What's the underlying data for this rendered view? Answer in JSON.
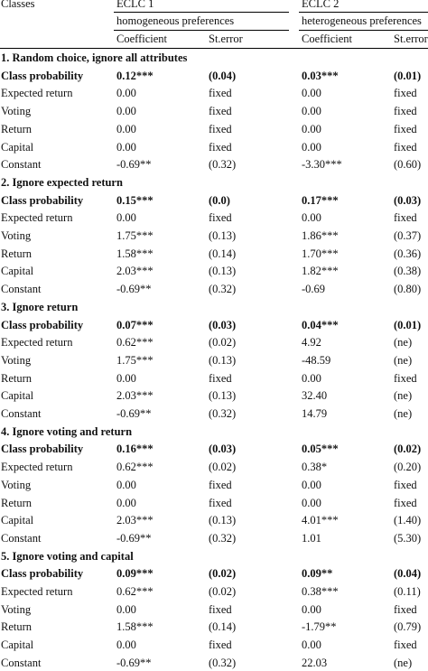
{
  "header": {
    "classes_label": "Classes",
    "eclc1": "ECLC 1",
    "eclc1_sub": "homogeneous preferences",
    "eclc2": "ECLC 2",
    "eclc2_sub": "heterogeneous preferences",
    "coef1": "Coefficient",
    "se1": "St.error",
    "coef2": "Coefficient",
    "se2": "St.error"
  },
  "sections": [
    {
      "title": "1. Random choice, ignore all attributes",
      "rows": [
        {
          "label": "Class probability",
          "c1": "0.12***",
          "s1": "(0.04)",
          "c2": "0.03***",
          "s2": "(0.01)",
          "bold": true
        },
        {
          "label": "Expected return",
          "c1": "0.00",
          "s1": "fixed",
          "c2": "0.00",
          "s2": "fixed"
        },
        {
          "label": "Voting",
          "c1": "0.00",
          "s1": "fixed",
          "c2": "0.00",
          "s2": "fixed"
        },
        {
          "label": "Return",
          "c1": "0.00",
          "s1": "fixed",
          "c2": "0.00",
          "s2": "fixed"
        },
        {
          "label": "Capital",
          "c1": "0.00",
          "s1": "fixed",
          "c2": "0.00",
          "s2": "fixed"
        },
        {
          "label": "Constant",
          "c1": "-0.69**",
          "s1": "(0.32)",
          "c2": "-3.30***",
          "s2": "(0.60)"
        }
      ]
    },
    {
      "title": "2. Ignore expected return",
      "rows": [
        {
          "label": "Class probability",
          "c1": "0.15***",
          "s1": "(0.0)",
          "c2": "0.17***",
          "s2": "(0.03)",
          "bold": true
        },
        {
          "label": "Expected return",
          "c1": "0.00",
          "s1": "fixed",
          "c2": "0.00",
          "s2": "fixed"
        },
        {
          "label": "Voting",
          "c1": "1.75***",
          "s1": "(0.13)",
          "c2": "1.86***",
          "s2": "(0.37)"
        },
        {
          "label": "Return",
          "c1": "1.58***",
          "s1": "(0.14)",
          "c2": "1.70***",
          "s2": "(0.36)"
        },
        {
          "label": "Capital",
          "c1": "2.03***",
          "s1": "(0.13)",
          "c2": "1.82***",
          "s2": "(0.38)"
        },
        {
          "label": "Constant",
          "c1": "-0.69**",
          "s1": "(0.32)",
          "c2": "-0.69",
          "s2": "(0.80)"
        }
      ]
    },
    {
      "title": "3. Ignore return",
      "rows": [
        {
          "label": "Class probability",
          "c1": "0.07***",
          "s1": "(0.03)",
          "c2": "0.04***",
          "s2": "(0.01)",
          "bold": true
        },
        {
          "label": "Expected return",
          "c1": "0.62***",
          "s1": "(0.02)",
          "c2": "4.92",
          "s2": "(ne)"
        },
        {
          "label": "Voting",
          "c1": "1.75***",
          "s1": "(0.13)",
          "c2": "-48.59",
          "s2": "(ne)"
        },
        {
          "label": "Return",
          "c1": "0.00",
          "s1": "fixed",
          "c2": "0.00",
          "s2": "fixed"
        },
        {
          "label": "Capital",
          "c1": "2.03***",
          "s1": "(0.13)",
          "c2": "32.40",
          "s2": "(ne)"
        },
        {
          "label": "Constant",
          "c1": "-0.69**",
          "s1": "(0.32)",
          "c2": "14.79",
          "s2": "(ne)"
        }
      ]
    },
    {
      "title": "4. Ignore voting and return",
      "rows": [
        {
          "label": "Class probability",
          "c1": "0.16***",
          "s1": "(0.03)",
          "c2": "0.05***",
          "s2": "(0.02)",
          "bold": true
        },
        {
          "label": "Expected return",
          "c1": "0.62***",
          "s1": "(0.02)",
          "c2": "0.38*",
          "s2": "(0.20)"
        },
        {
          "label": "Voting",
          "c1": "0.00",
          "s1": "fixed",
          "c2": "0.00",
          "s2": "fixed"
        },
        {
          "label": "Return",
          "c1": "0.00",
          "s1": "fixed",
          "c2": "0.00",
          "s2": "fixed"
        },
        {
          "label": "Capital",
          "c1": "2.03***",
          "s1": "(0.13)",
          "c2": "4.01***",
          "s2": "(1.40)"
        },
        {
          "label": "Constant",
          "c1": "-0.69**",
          "s1": "(0.32)",
          "c2": "1.01",
          "s2": "(5.30)"
        }
      ]
    },
    {
      "title": "5. Ignore voting and capital",
      "rows": [
        {
          "label": "Class probability",
          "c1": "0.09***",
          "s1": "(0.02)",
          "c2": "0.09**",
          "s2": "(0.04)",
          "bold": true
        },
        {
          "label": "Expected return",
          "c1": "0.62***",
          "s1": "(0.02)",
          "c2": "0.38***",
          "s2": "(0.11)"
        },
        {
          "label": "Voting",
          "c1": "0.00",
          "s1": "fixed",
          "c2": "0.00",
          "s2": "fixed"
        },
        {
          "label": "Return",
          "c1": "1.58***",
          "s1": "(0.14)",
          "c2": "-1.79**",
          "s2": "(0.79)"
        },
        {
          "label": "Capital",
          "c1": "0.00",
          "s1": "fixed",
          "c2": "0.00",
          "s2": "fixed"
        },
        {
          "label": "Constant",
          "c1": "-0.69**",
          "s1": "(0.32)",
          "c2": "22.03",
          "s2": "(ne)"
        }
      ]
    }
  ]
}
